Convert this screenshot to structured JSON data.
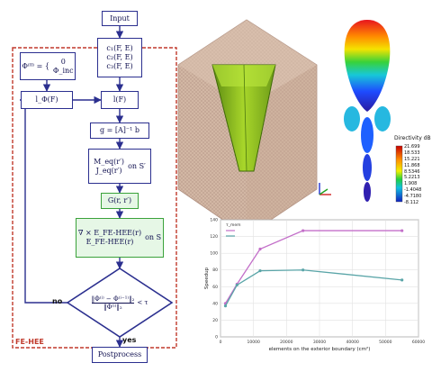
{
  "flowchart": {
    "label": "FE-HEE",
    "nodes": {
      "input": "Input",
      "cfields": [
        "c₁(F, E)",
        "c₂(F, E)",
        "c₃(F, E)"
      ],
      "init": [
        "Φ⁽⁰⁾ = {",
        "0",
        "Φ_inc"
      ],
      "lphi": "l_Φ(F)",
      "lf": "l(F)",
      "solve": "g = [A]⁻¹ b",
      "currents": [
        "M_eq(r′)",
        "J_eq(r′)",
        "on S′"
      ],
      "green": "G(r, r′)",
      "field": [
        "∇ × E_FE-HEE(r)",
        "E_FE-HEE(r)",
        "on S"
      ],
      "decision": [
        "‖Φ⁽ⁱ⁾ − Φ⁽ⁱ⁻¹⁾‖₂",
        "‖Φ⁽ⁱ⁾‖₂",
        "< τ"
      ],
      "post": "Postprocess"
    },
    "yes": "yes",
    "no": "no"
  },
  "pattern": {
    "title": "Directivity dB",
    "ticks": [
      "21.699",
      "18.533",
      "15.221",
      "11.868",
      "8.5346",
      "5.2213",
      "1.908",
      "-1.4048",
      "-4.7180",
      "-8.112"
    ]
  },
  "chart_data": {
    "type": "line",
    "title": "",
    "xlabel": "elements on the exterior boundary (cm²)",
    "ylabel": "Speedup",
    "legend_title": "τ_mem",
    "legend_position": "top-left",
    "grid": true,
    "xlim": [
      0,
      60000
    ],
    "ylim": [
      0,
      140
    ],
    "x_ticks": [
      "0",
      "10000",
      "20000",
      "30000",
      "40000",
      "50000",
      "60000"
    ],
    "y_ticks": [
      "0",
      "20",
      "40",
      "60",
      "80",
      "100",
      "120",
      "140"
    ],
    "series": [
      {
        "name": "",
        "color": "#c36fc9",
        "x": [
          1500,
          5000,
          12000,
          25000,
          55000
        ],
        "y": [
          40,
          63,
          105,
          127,
          127
        ]
      },
      {
        "name": "",
        "color": "#5aa5a8",
        "x": [
          1500,
          5000,
          12000,
          25000,
          55000
        ],
        "y": [
          37,
          62,
          79,
          80,
          68
        ]
      }
    ]
  },
  "colors": {
    "flow_border": "#2b2f8f",
    "green_border": "#3aa23a",
    "fe_border": "#c0392b"
  }
}
